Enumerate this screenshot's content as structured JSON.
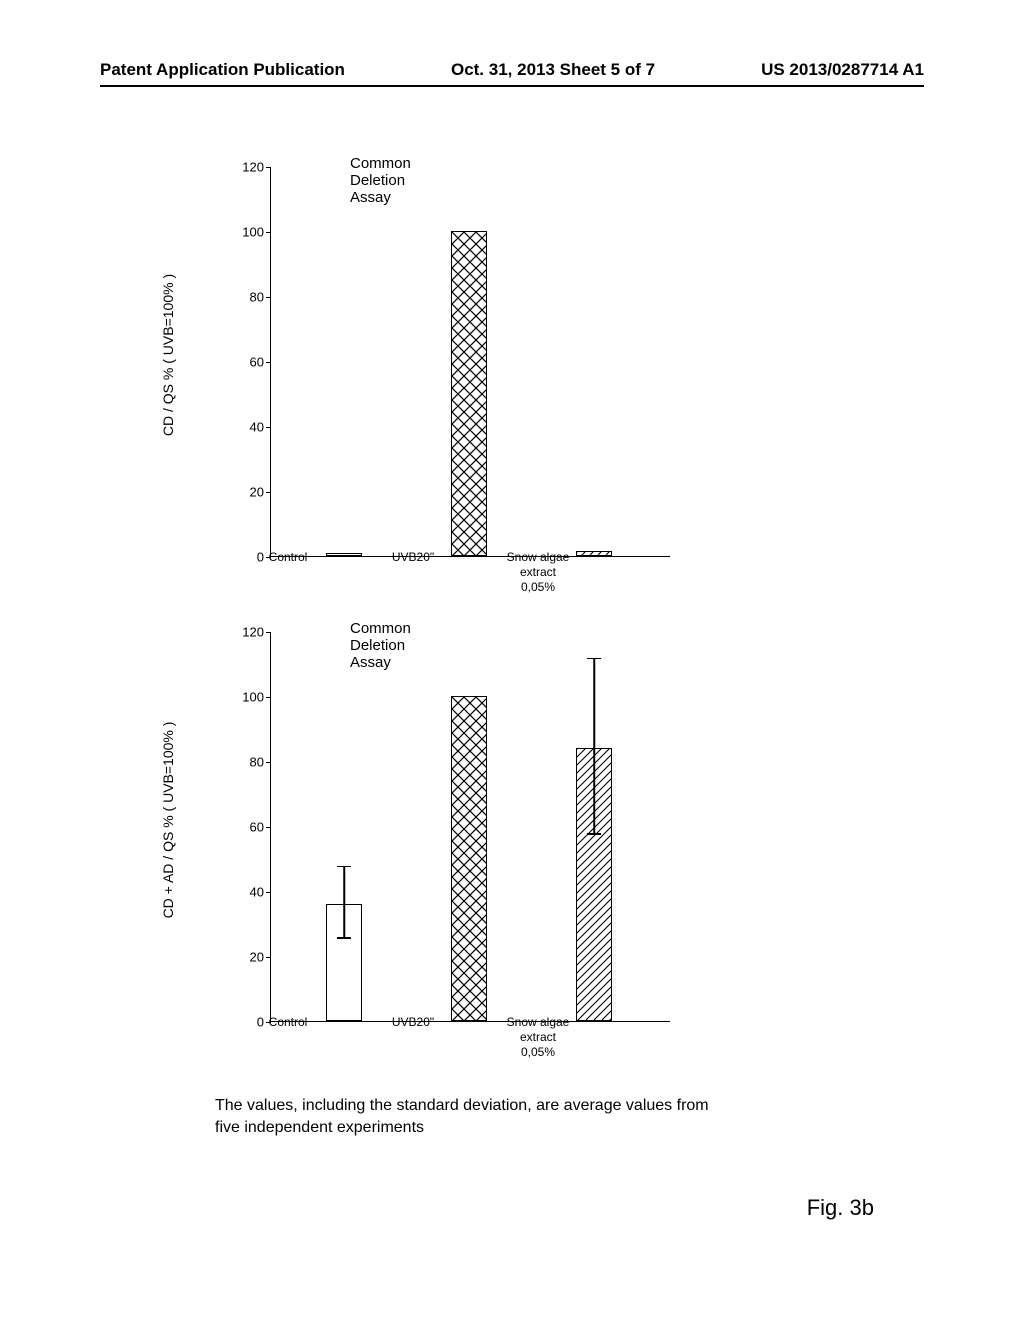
{
  "header": {
    "left": "Patent Application Publication",
    "center": "Oct. 31, 2013  Sheet 5 of 7",
    "right": "US 2013/0287714 A1"
  },
  "chart1": {
    "type": "bar",
    "title": "Common Deletion Assay",
    "ylabel": "CD / QS %  ( UVB=100% )",
    "ymax": 120,
    "ytick_step": 20,
    "categories": [
      "Control",
      "UVB20\"",
      "Snow algae\nextract\n0,05%"
    ],
    "values": [
      1,
      100,
      1.5
    ],
    "patterns": [
      "white",
      "crosshatch",
      "diag"
    ],
    "background_color": "#ffffff"
  },
  "chart2": {
    "type": "bar",
    "title": "Common Deletion Assay",
    "ylabel": "CD + AD / QS %  ( UVB=100% )",
    "ymax": 120,
    "ytick_step": 20,
    "categories": [
      "Control",
      "UVB20\"",
      "Snow algae\nextract\n0,05%"
    ],
    "values": [
      36,
      100,
      84
    ],
    "patterns": [
      "white",
      "crosshatch",
      "diag"
    ],
    "errors": [
      11,
      0,
      27
    ],
    "background_color": "#ffffff"
  },
  "caption": "The values, including the standard deviation, are average values from five independent experiments",
  "figure_label": "Fig. 3b"
}
